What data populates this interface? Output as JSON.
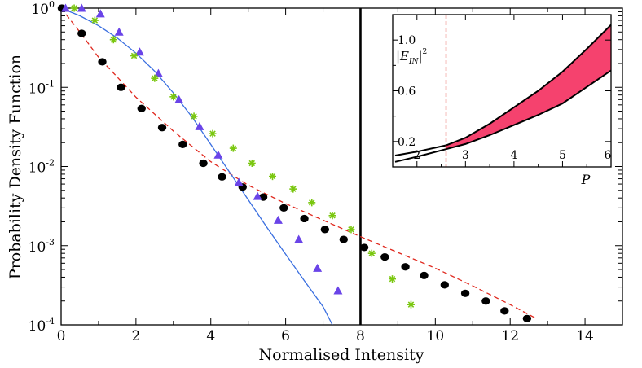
{
  "chart_data": [
    {
      "type": "scatter",
      "role": "main",
      "xlabel": "Normalised Intensity",
      "ylabel": "Probability Density Function",
      "xlim": [
        0,
        15
      ],
      "ylim": [
        0.0001,
        1
      ],
      "yscale": "log",
      "x_ticks": [
        0,
        2,
        4,
        6,
        8,
        10,
        12,
        14
      ],
      "y_ticks": [
        {
          "value": 1,
          "base": "10",
          "exp": "0"
        },
        {
          "value": 0.1,
          "base": "10",
          "exp": "-1"
        },
        {
          "value": 0.01,
          "base": "10",
          "exp": "-2"
        },
        {
          "value": 0.001,
          "base": "10",
          "exp": "-3"
        },
        {
          "value": 0.0001,
          "base": "10",
          "exp": "-4"
        }
      ],
      "vertical_line": {
        "x": 8,
        "color": "#000000"
      },
      "series": [
        {
          "name": "circles",
          "marker": "circle",
          "color": "#000000",
          "x": [
            0.02,
            0.55,
            1.1,
            1.6,
            2.15,
            2.7,
            3.25,
            3.8,
            4.3,
            4.85,
            5.4,
            5.95,
            6.5,
            7.05,
            7.55,
            8.1,
            8.65,
            9.2,
            9.7,
            10.25,
            10.8,
            11.35,
            11.85,
            12.45
          ],
          "y": [
            1.0,
            0.48,
            0.21,
            0.1,
            0.054,
            0.031,
            0.019,
            0.011,
            0.0074,
            0.0055,
            0.0041,
            0.003,
            0.0022,
            0.0016,
            0.0012,
            0.00095,
            0.00072,
            0.00054,
            0.00042,
            0.00032,
            0.00025,
            0.0002,
            0.00015,
            0.00012
          ]
        },
        {
          "name": "triangles",
          "marker": "triangle",
          "color": "#6a44e8",
          "x": [
            0.12,
            0.55,
            1.05,
            1.55,
            2.1,
            2.6,
            3.15,
            3.7,
            4.2,
            4.75,
            5.25,
            5.8,
            6.35,
            6.85,
            7.4
          ],
          "y": [
            1.0,
            1.0,
            0.85,
            0.5,
            0.28,
            0.15,
            0.07,
            0.032,
            0.014,
            0.0063,
            0.0042,
            0.0021,
            0.0012,
            0.00052,
            0.00027
          ]
        },
        {
          "name": "stars",
          "marker": "star",
          "color": "#7ac70f",
          "x": [
            0.35,
            0.9,
            1.4,
            1.95,
            2.5,
            3.0,
            3.55,
            4.05,
            4.6,
            5.1,
            5.65,
            6.2,
            6.7,
            7.25,
            7.75,
            8.3,
            8.85,
            9.35
          ],
          "y": [
            1.0,
            0.7,
            0.4,
            0.25,
            0.13,
            0.076,
            0.043,
            0.026,
            0.017,
            0.011,
            0.0075,
            0.0052,
            0.0035,
            0.0024,
            0.0016,
            0.0008,
            0.00038,
            0.00018
          ]
        },
        {
          "name": "red-dashed-fit",
          "line": "dashed",
          "color": "#e0281e",
          "x": [
            0,
            0.5,
            1,
            1.5,
            2,
            3,
            4,
            5,
            6,
            7,
            8,
            9,
            10,
            11,
            12,
            12.7
          ],
          "y": [
            1.0,
            0.5,
            0.24,
            0.135,
            0.075,
            0.028,
            0.0115,
            0.0058,
            0.0034,
            0.0021,
            0.0013,
            0.00082,
            0.00052,
            0.00031,
            0.00018,
            0.00012
          ]
        },
        {
          "name": "blue-fit",
          "line": "solid",
          "color": "#3a6fe0",
          "x": [
            0,
            0.5,
            1,
            1.5,
            2,
            2.5,
            3,
            3.5,
            4,
            4.5,
            5,
            5.5,
            6,
            6.5,
            7,
            7.25
          ],
          "y": [
            1.0,
            0.8,
            0.6,
            0.42,
            0.27,
            0.16,
            0.085,
            0.042,
            0.019,
            0.0085,
            0.0038,
            0.0017,
            0.00078,
            0.00036,
            0.00017,
            0.0001
          ]
        }
      ]
    },
    {
      "type": "area",
      "role": "inset",
      "xlabel": "P",
      "ylabel_base": "|E",
      "ylabel_sub": "IN",
      "ylabel_exp": "2",
      "xlim": [
        1.5,
        6
      ],
      "ylim": [
        0.0,
        1.2
      ],
      "x_ticks": [
        2,
        3,
        4,
        5,
        6
      ],
      "y_ticks": [
        0.2,
        0.6,
        1.0
      ],
      "y_tick_labels": [
        "0.2",
        "0.6",
        "1.0"
      ],
      "threshold_line": {
        "x": 2.6,
        "color": "#e0281e",
        "style": "dashed"
      },
      "fill_color": "#f5426e",
      "upper": {
        "x": [
          1.55,
          2.0,
          2.6,
          3.0,
          3.5,
          4.0,
          4.5,
          5.0,
          5.5,
          6.0
        ],
        "y": [
          0.09,
          0.12,
          0.17,
          0.23,
          0.34,
          0.47,
          0.6,
          0.75,
          0.93,
          1.12
        ]
      },
      "lower": {
        "x": [
          1.55,
          2.0,
          2.6,
          3.0,
          3.5,
          4.0,
          4.5,
          5.0,
          5.5,
          6.0
        ],
        "y": [
          0.04,
          0.08,
          0.14,
          0.18,
          0.25,
          0.33,
          0.41,
          0.5,
          0.63,
          0.76
        ]
      }
    }
  ]
}
